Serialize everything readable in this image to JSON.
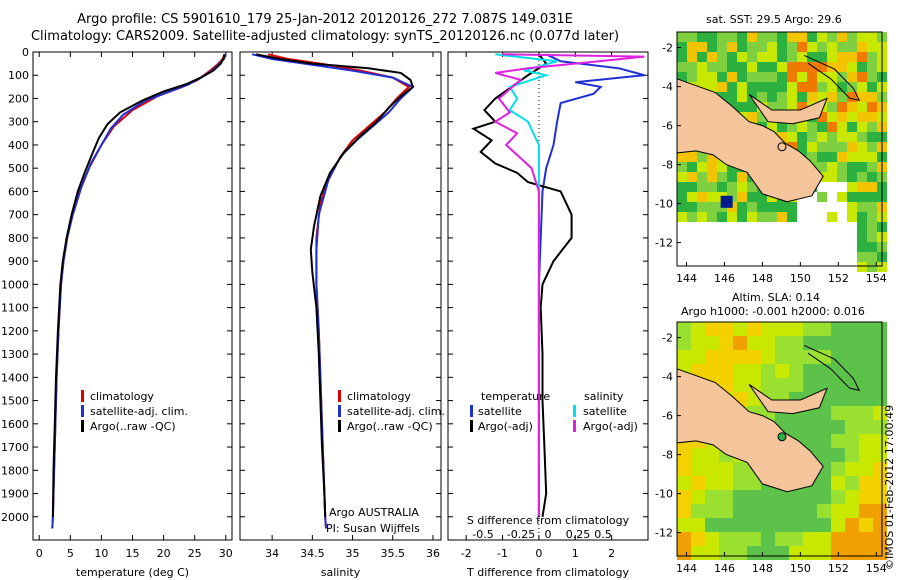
{
  "header": {
    "title_line1": "Argo profile: CS 5901610_179 25-Jan-2012 20120126_272 7.087S 149.031E",
    "title_line2": "Climatology: CARS2009. Satellite-adjusted climatology: synTS_20120126.nc (0.077d later)"
  },
  "colors": {
    "climatology": "#e00000",
    "satellite": "#1f2fd6",
    "argo": "#000000",
    "satellite_salinity": "#00e0e8",
    "argo_salinity_diff": "#e020e0",
    "land": "#f4c49a"
  },
  "chart_data": [
    {
      "type": "line",
      "name": "temperature-profile",
      "xlabel": "temperature (deg C)",
      "xlim": [
        -1,
        31
      ],
      "xticks": [
        0,
        5,
        10,
        15,
        20,
        25,
        30
      ],
      "ylim": [
        2100,
        0
      ],
      "yticks": [
        0,
        100,
        200,
        300,
        400,
        500,
        600,
        700,
        800,
        900,
        1000,
        1100,
        1200,
        1300,
        1400,
        1500,
        1600,
        1700,
        1800,
        1900,
        2000
      ],
      "legend": [
        "climatology",
        "satellite-adj. clim.",
        "Argo(..raw -QC)"
      ],
      "series": [
        {
          "name": "climatology",
          "color": "#e00000",
          "points": [
            [
              29.8,
              10
            ],
            [
              29.5,
              30
            ],
            [
              28.8,
              50
            ],
            [
              27.5,
              80
            ],
            [
              25.5,
              120
            ],
            [
              23,
              150
            ],
            [
              19,
              190
            ],
            [
              15,
              250
            ],
            [
              12,
              320
            ],
            [
              10,
              400
            ],
            [
              8,
              500
            ],
            [
              6.5,
              600
            ],
            [
              5.3,
              700
            ],
            [
              4.5,
              800
            ],
            [
              3.9,
              900
            ],
            [
              3.5,
              1000
            ],
            [
              3.1,
              1200
            ],
            [
              2.8,
              1400
            ],
            [
              2.6,
              1600
            ],
            [
              2.4,
              1800
            ],
            [
              2.2,
              2000
            ],
            [
              2.1,
              2050
            ]
          ]
        },
        {
          "name": "satellite-adj. clim.",
          "color": "#1f2fd6",
          "points": [
            [
              30,
              10
            ],
            [
              29.7,
              30
            ],
            [
              29,
              50
            ],
            [
              27.8,
              80
            ],
            [
              26,
              110
            ],
            [
              24,
              140
            ],
            [
              21,
              170
            ],
            [
              17,
              210
            ],
            [
              13.5,
              270
            ],
            [
              11.5,
              330
            ],
            [
              10,
              400
            ],
            [
              8.3,
              480
            ],
            [
              6.8,
              580
            ],
            [
              5.4,
              700
            ],
            [
              4.5,
              800
            ],
            [
              3.9,
              900
            ],
            [
              3.5,
              1000
            ],
            [
              3.1,
              1200
            ],
            [
              2.8,
              1400
            ],
            [
              2.6,
              1600
            ],
            [
              2.4,
              1800
            ],
            [
              2.2,
              2000
            ],
            [
              2.1,
              2050
            ]
          ]
        },
        {
          "name": "Argo(..raw -QC)",
          "color": "#000000",
          "points": [
            [
              29.8,
              10
            ],
            [
              29.6,
              30
            ],
            [
              29.2,
              50
            ],
            [
              28,
              80
            ],
            [
              26,
              110
            ],
            [
              23.5,
              140
            ],
            [
              20,
              170
            ],
            [
              16.5,
              210
            ],
            [
              13,
              260
            ],
            [
              11,
              310
            ],
            [
              9.6,
              370
            ],
            [
              8.5,
              440
            ],
            [
              7.3,
              520
            ],
            [
              6.2,
              600
            ],
            [
              5.2,
              700
            ],
            [
              4.4,
              800
            ],
            [
              3.8,
              900
            ],
            [
              3.4,
              1000
            ],
            [
              3.0,
              1200
            ],
            [
              2.7,
              1400
            ],
            [
              2.5,
              1600
            ],
            [
              2.3,
              1800
            ],
            [
              2.2,
              2000
            ]
          ]
        }
      ]
    },
    {
      "type": "line",
      "name": "salinity-profile",
      "xlabel": "salinity",
      "xlim": [
        33.6,
        36.1
      ],
      "xticks": [
        34,
        34.5,
        35,
        35.5,
        36
      ],
      "ylim": [
        2100,
        0
      ],
      "legend": [
        "climatology",
        "satellite-adj. clim.",
        "Argo(..raw -QC)"
      ],
      "notes": [
        "Argo AUSTRALIA",
        "PI: Susan Wijffels"
      ],
      "series": [
        {
          "name": "climatology",
          "color": "#e00000",
          "points": [
            [
              33.95,
              10
            ],
            [
              34.2,
              30
            ],
            [
              34.6,
              50
            ],
            [
              35.1,
              80
            ],
            [
              35.5,
              110
            ],
            [
              35.7,
              150
            ],
            [
              35.55,
              200
            ],
            [
              35.4,
              260
            ],
            [
              35.2,
              320
            ],
            [
              35.0,
              380
            ],
            [
              34.85,
              450
            ],
            [
              34.7,
              550
            ],
            [
              34.6,
              650
            ],
            [
              34.55,
              800
            ],
            [
              34.55,
              1000
            ],
            [
              34.58,
              1200
            ],
            [
              34.6,
              1400
            ],
            [
              34.62,
              1600
            ],
            [
              34.64,
              1800
            ],
            [
              34.66,
              2000
            ],
            [
              34.67,
              2050
            ]
          ]
        },
        {
          "name": "satellite-adj. clim.",
          "color": "#1f2fd6",
          "points": [
            [
              33.75,
              10
            ],
            [
              34.0,
              30
            ],
            [
              34.4,
              50
            ],
            [
              35.0,
              80
            ],
            [
              35.5,
              110
            ],
            [
              35.75,
              150
            ],
            [
              35.6,
              200
            ],
            [
              35.45,
              260
            ],
            [
              35.25,
              320
            ],
            [
              35.05,
              380
            ],
            [
              34.85,
              450
            ],
            [
              34.7,
              550
            ],
            [
              34.58,
              700
            ],
            [
              34.55,
              850
            ],
            [
              34.55,
              1000
            ],
            [
              34.58,
              1200
            ],
            [
              34.6,
              1400
            ],
            [
              34.62,
              1600
            ],
            [
              34.64,
              1800
            ],
            [
              34.66,
              2000
            ],
            [
              34.67,
              2050
            ]
          ]
        },
        {
          "name": "Argo(..raw -QC)",
          "color": "#000000",
          "points": [
            [
              33.8,
              10
            ],
            [
              34.1,
              30
            ],
            [
              34.5,
              50
            ],
            [
              35.2,
              70
            ],
            [
              35.6,
              90
            ],
            [
              35.72,
              120
            ],
            [
              35.75,
              150
            ],
            [
              35.6,
              190
            ],
            [
              35.45,
              240
            ],
            [
              35.3,
              300
            ],
            [
              35.1,
              360
            ],
            [
              34.9,
              430
            ],
            [
              34.72,
              520
            ],
            [
              34.6,
              620
            ],
            [
              34.52,
              750
            ],
            [
              34.48,
              850
            ],
            [
              34.5,
              950
            ],
            [
              34.55,
              1100
            ],
            [
              34.58,
              1300
            ],
            [
              34.6,
              1500
            ],
            [
              34.62,
              1700
            ],
            [
              34.65,
              1900
            ],
            [
              34.66,
              2000
            ]
          ]
        }
      ]
    },
    {
      "type": "line",
      "name": "difference-profile",
      "xlabel": "T difference from climatology",
      "xlabel_top": "S difference from climatology",
      "xlim": [
        -2.5,
        3.0
      ],
      "xticks": [
        -2,
        -1,
        0,
        1,
        2
      ],
      "xticks_S": [
        "-0.5",
        "-0.25",
        "0",
        "0.25",
        "0.5"
      ],
      "ylim": [
        2100,
        0
      ],
      "legend_temperature_title": "temperature",
      "legend_salinity_title": "salinity",
      "legend": [
        "satellite",
        "Argo(-adj)"
      ],
      "series": [
        {
          "name": "temperature satellite",
          "color": "#1f2fd6",
          "points": [
            [
              0.2,
              10
            ],
            [
              0.6,
              40
            ],
            [
              2.2,
              70
            ],
            [
              2.9,
              100
            ],
            [
              1.0,
              130
            ],
            [
              1.7,
              150
            ],
            [
              1.5,
              180
            ],
            [
              0.6,
              220
            ],
            [
              0.5,
              300
            ],
            [
              0.4,
              400
            ],
            [
              0.2,
              500
            ],
            [
              0.1,
              600
            ],
            [
              0.05,
              800
            ],
            [
              0.0,
              1000
            ],
            [
              0.0,
              2000
            ]
          ]
        },
        {
          "name": "temperature Argo(-adj)",
          "color": "#000000",
          "points": [
            [
              0.0,
              10
            ],
            [
              0.2,
              50
            ],
            [
              -0.3,
              100
            ],
            [
              -1.2,
              200
            ],
            [
              -1.5,
              250
            ],
            [
              -1.2,
              300
            ],
            [
              -1.8,
              330
            ],
            [
              -1.3,
              380
            ],
            [
              -1.6,
              430
            ],
            [
              -1.2,
              480
            ],
            [
              -0.6,
              520
            ],
            [
              -0.3,
              560
            ],
            [
              0.6,
              600
            ],
            [
              0.9,
              700
            ],
            [
              0.9,
              800
            ],
            [
              0.4,
              900
            ],
            [
              0.1,
              1000
            ],
            [
              0.05,
              1100
            ],
            [
              0.1,
              1300
            ],
            [
              0.1,
              1500
            ],
            [
              0.15,
              1700
            ],
            [
              0.2,
              1900
            ],
            [
              0.1,
              2000
            ]
          ]
        },
        {
          "name": "salinity satellite",
          "color": "#00e0e8",
          "points": [
            [
              -1.2,
              10
            ],
            [
              0.5,
              40
            ],
            [
              -0.4,
              80
            ],
            [
              0.2,
              100
            ],
            [
              -0.8,
              150
            ],
            [
              -0.6,
              200
            ],
            [
              -0.8,
              250
            ],
            [
              -0.3,
              300
            ],
            [
              0.0,
              400
            ],
            [
              0.0,
              600
            ],
            [
              0.0,
              1000
            ],
            [
              0.0,
              2000
            ]
          ]
        },
        {
          "name": "salinity Argo(-adj)",
          "color": "#e020e0",
          "points": [
            [
              -1.0,
              10
            ],
            [
              2.9,
              20
            ],
            [
              1.0,
              50
            ],
            [
              -0.3,
              70
            ],
            [
              -1.2,
              90
            ],
            [
              -0.5,
              120
            ],
            [
              -1.1,
              200
            ],
            [
              -0.8,
              260
            ],
            [
              -1.2,
              300
            ],
            [
              -0.6,
              350
            ],
            [
              -0.9,
              400
            ],
            [
              -0.2,
              500
            ],
            [
              0.0,
              600
            ],
            [
              0.0,
              1000
            ],
            [
              0.0,
              2000
            ]
          ]
        }
      ]
    }
  ],
  "maps": {
    "sst": {
      "title": "sat. SST: 29.5 Argo: 29.6",
      "xticks": [
        "144",
        "146",
        "148",
        "150",
        "152",
        "154"
      ],
      "yticks": [
        "-2",
        "-4",
        "-6",
        "-8",
        "-10",
        "-12"
      ],
      "xlim": [
        143.5,
        154.3
      ],
      "ylim": [
        -13.2,
        -1.2
      ],
      "argo_position": [
        149.031,
        -7.087
      ]
    },
    "sla": {
      "title_line1": "Altim. SLA: 0.14",
      "title_line2": "Argo h1000: -0.001 h2000: 0.016",
      "xticks": [
        "144",
        "146",
        "148",
        "150",
        "152",
        "154"
      ],
      "yticks": [
        "-2",
        "-4",
        "-6",
        "-8",
        "-10",
        "-12"
      ],
      "xlim": [
        143.5,
        154.3
      ],
      "ylim": [
        -13.2,
        -1.2
      ],
      "argo_position": [
        149.031,
        -7.087
      ]
    }
  },
  "footer": {
    "credit": "©IMOS 01-Feb-2012 17:00:49"
  }
}
